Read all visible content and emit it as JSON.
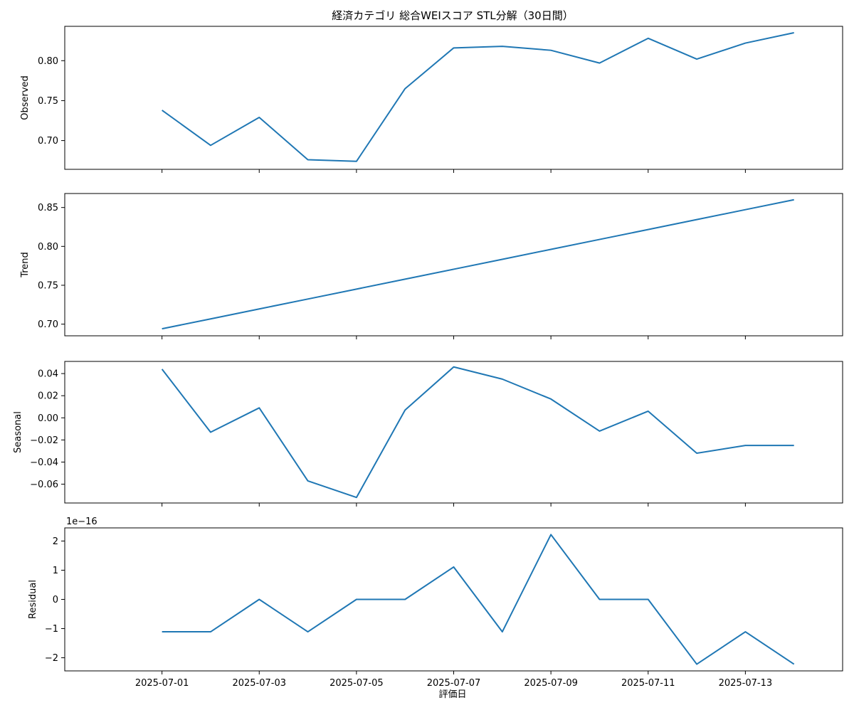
{
  "chart_data": {
    "type": "line",
    "title": "経済カテゴリ 総合WEIスコア STL分解（30日間）",
    "xlabel": "評価日",
    "line_color": "#1f77b4",
    "x": [
      "2025-07-01",
      "2025-07-02",
      "2025-07-03",
      "2025-07-04",
      "2025-07-05",
      "2025-07-06",
      "2025-07-07",
      "2025-07-08",
      "2025-07-09",
      "2025-07-10",
      "2025-07-11",
      "2025-07-12",
      "2025-07-13",
      "2025-07-14"
    ],
    "xticks": [
      "2025-07-01",
      "2025-07-03",
      "2025-07-05",
      "2025-07-07",
      "2025-07-09",
      "2025-07-11",
      "2025-07-13"
    ],
    "xlim": [
      "2025-06-29",
      "2025-07-15"
    ],
    "panels": [
      {
        "ylabel": "Observed",
        "values": [
          0.738,
          0.694,
          0.729,
          0.676,
          0.674,
          0.765,
          0.816,
          0.818,
          0.813,
          0.797,
          0.828,
          0.802,
          0.822,
          0.835
        ],
        "ylim": [
          0.664,
          0.843
        ],
        "yticks": [
          0.7,
          0.75,
          0.8
        ],
        "ytick_labels": [
          "0.70",
          "0.75",
          "0.80"
        ],
        "offset_label": ""
      },
      {
        "ylabel": "Trend",
        "values": [
          0.694,
          0.70677,
          0.71954,
          0.73231,
          0.74508,
          0.75785,
          0.77062,
          0.78339,
          0.79616,
          0.80893,
          0.8217,
          0.83447,
          0.84724,
          0.86
        ],
        "ylim": [
          0.685,
          0.868
        ],
        "yticks": [
          0.7,
          0.75,
          0.8,
          0.85
        ],
        "ytick_labels": [
          "0.70",
          "0.75",
          "0.80",
          "0.85"
        ],
        "offset_label": ""
      },
      {
        "ylabel": "Seasonal",
        "values": [
          0.044,
          -0.013,
          0.009,
          -0.057,
          -0.072,
          0.007,
          0.046,
          0.035,
          0.017,
          -0.012,
          0.006,
          -0.032,
          -0.025,
          -0.025
        ],
        "ylim": [
          -0.077,
          0.051
        ],
        "yticks": [
          0.04,
          0.02,
          0.0,
          -0.02,
          -0.04,
          -0.06
        ],
        "ytick_labels": [
          "0.04",
          "0.02",
          "0.00",
          "−0.02",
          "−0.04",
          "−0.06"
        ],
        "offset_label": ""
      },
      {
        "ylabel": "Residual",
        "values": [
          -1.11,
          -1.11,
          0,
          -1.11,
          0,
          0,
          1.11,
          -1.11,
          2.22,
          0,
          0,
          -2.22,
          -1.11,
          -2.22
        ],
        "ylim": [
          -2.45,
          2.45
        ],
        "yticks": [
          2,
          1,
          0,
          -1,
          -2
        ],
        "ytick_labels": [
          "2",
          "1",
          "0",
          "−1",
          "−2"
        ],
        "offset_label": "1e−16"
      }
    ]
  }
}
